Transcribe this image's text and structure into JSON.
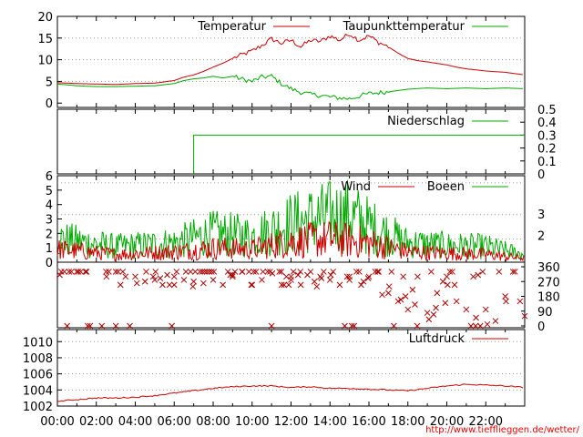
{
  "chart_data": [
    {
      "panel": "temperature",
      "type": "line",
      "ylim": [
        -1,
        20
      ],
      "yticks": [
        "0",
        "5",
        "10",
        "15",
        "20"
      ],
      "grid": true,
      "legend_placement": "top-right",
      "series": [
        {
          "name": "Temperatur",
          "color": "#cc0000",
          "points": [
            [
              0,
              4.7
            ],
            [
              1,
              4.5
            ],
            [
              2,
              4.4
            ],
            [
              3,
              4.3
            ],
            [
              4,
              4.5
            ],
            [
              5,
              4.6
            ],
            [
              6,
              5.2
            ],
            [
              6.5,
              6.0
            ],
            [
              7,
              6.5
            ],
            [
              7.5,
              7.3
            ],
            [
              8,
              8.3
            ],
            [
              8.5,
              9.2
            ],
            [
              9,
              10.3
            ],
            [
              9.5,
              11.2
            ],
            [
              10,
              12.0
            ],
            [
              10.5,
              13.3
            ],
            [
              11,
              14.8
            ],
            [
              11.5,
              13.8
            ],
            [
              12,
              14.5
            ],
            [
              12.5,
              13.0
            ],
            [
              13,
              14.5
            ],
            [
              13.5,
              14.2
            ],
            [
              14,
              15.5
            ],
            [
              14.5,
              14.5
            ],
            [
              15,
              16.0
            ],
            [
              15.5,
              14.5
            ],
            [
              16,
              15.5
            ],
            [
              16.5,
              14.0
            ],
            [
              17,
              13.0
            ],
            [
              17.5,
              11.5
            ],
            [
              18,
              10.3
            ],
            [
              18.5,
              9.8
            ],
            [
              19,
              9.5
            ],
            [
              20,
              8.8
            ],
            [
              20.5,
              8.3
            ],
            [
              21,
              7.9
            ],
            [
              22,
              7.4
            ],
            [
              23,
              7.1
            ],
            [
              24,
              6.5
            ]
          ]
        },
        {
          "name": "Taupunkttemperatur",
          "color": "#00aa00",
          "points": [
            [
              0,
              4.4
            ],
            [
              1,
              4.0
            ],
            [
              2,
              3.8
            ],
            [
              3,
              3.8
            ],
            [
              4,
              3.9
            ],
            [
              5,
              4.0
            ],
            [
              6,
              4.5
            ],
            [
              6.5,
              5.2
            ],
            [
              7,
              5.6
            ],
            [
              7.5,
              5.8
            ],
            [
              8,
              6.2
            ],
            [
              8.5,
              5.8
            ],
            [
              9,
              6.2
            ],
            [
              9.5,
              5.5
            ],
            [
              10,
              5.0
            ],
            [
              10.5,
              6.0
            ],
            [
              11,
              6.2
            ],
            [
              11.5,
              4.5
            ],
            [
              12,
              3.3
            ],
            [
              12.5,
              2.5
            ],
            [
              13,
              2.0
            ],
            [
              13.5,
              1.8
            ],
            [
              14,
              1.4
            ],
            [
              14.5,
              1.2
            ],
            [
              15,
              1.0
            ],
            [
              15.5,
              1.6
            ],
            [
              16,
              2.2
            ],
            [
              16.5,
              2.4
            ],
            [
              17,
              2.6
            ],
            [
              18,
              3.2
            ],
            [
              19,
              3.5
            ],
            [
              20,
              3.3
            ],
            [
              21,
              3.5
            ],
            [
              22,
              3.3
            ],
            [
              23,
              3.5
            ],
            [
              24,
              3.3
            ]
          ]
        }
      ]
    },
    {
      "panel": "precipitation",
      "type": "line",
      "ylim": [
        0,
        0.5
      ],
      "yticks": [
        "0",
        "0.1",
        "0.2",
        "0.3",
        "0.4",
        "0.5"
      ],
      "y_axis_side": "right",
      "legend_placement": "top-right",
      "series": [
        {
          "name": "Niederschlag",
          "color": "#00aa00",
          "points": [
            [
              7.0,
              0
            ],
            [
              7.0,
              0.3
            ],
            [
              24,
              0.3
            ]
          ]
        }
      ]
    },
    {
      "panel": "wind",
      "type": "line",
      "ylim": [
        0,
        6
      ],
      "yticks": [
        "0",
        "1",
        "2",
        "3",
        "4",
        "5",
        "6"
      ],
      "grid": true,
      "legend_placement": "top-right",
      "beaufort_labels": [
        "2",
        "3"
      ],
      "series": [
        {
          "name": "Wind",
          "color": "#cc0000",
          "profile": [
            [
              0,
              1.0
            ],
            [
              3,
              0.6
            ],
            [
              6,
              0.8
            ],
            [
              8,
              1.1
            ],
            [
              10,
              1.0
            ],
            [
              12,
              1.6
            ],
            [
              14,
              1.8
            ],
            [
              16,
              1.5
            ],
            [
              18,
              0.8
            ],
            [
              20,
              0.7
            ],
            [
              22,
              0.6
            ],
            [
              24,
              0.3
            ]
          ]
        },
        {
          "name": "Boeen",
          "color": "#00aa00",
          "profile": [
            [
              0,
              1.8
            ],
            [
              3,
              1.2
            ],
            [
              6,
              1.5
            ],
            [
              8,
              2.2
            ],
            [
              10,
              2.0
            ],
            [
              12,
              3.0
            ],
            [
              14,
              3.5
            ],
            [
              15,
              3.6
            ],
            [
              16,
              2.8
            ],
            [
              18,
              1.5
            ],
            [
              20,
              1.3
            ],
            [
              22,
              1.2
            ],
            [
              24,
              0.6
            ]
          ]
        }
      ]
    },
    {
      "panel": "wind-direction",
      "type": "scatter",
      "ylim": [
        0,
        360
      ],
      "yticks": [
        "0",
        "90",
        "180",
        "270",
        "360"
      ],
      "y_axis_side": "right",
      "marker": "x",
      "color": "#aa0000",
      "points": [
        [
          0.2,
          330
        ],
        [
          0.5,
          0
        ],
        [
          1.0,
          330
        ],
        [
          1.5,
          330
        ],
        [
          2.5,
          330
        ],
        [
          3.0,
          0
        ],
        [
          3.5,
          300
        ],
        [
          4.0,
          300
        ],
        [
          4.5,
          270
        ],
        [
          5.0,
          280
        ],
        [
          6.0,
          300
        ],
        [
          6.5,
          280
        ],
        [
          7.0,
          270
        ],
        [
          7.5,
          260
        ],
        [
          8.0,
          280
        ],
        [
          8.5,
          250
        ],
        [
          9.0,
          300
        ],
        [
          9.5,
          330
        ],
        [
          10.0,
          250
        ],
        [
          10.5,
          280
        ],
        [
          11.0,
          0
        ],
        [
          11.5,
          330
        ],
        [
          12.0,
          280
        ],
        [
          12.5,
          250
        ],
        [
          13.0,
          330
        ],
        [
          13.5,
          300
        ],
        [
          14.0,
          280
        ],
        [
          14.5,
          250
        ],
        [
          15.0,
          300
        ],
        [
          15.5,
          330
        ],
        [
          16.0,
          300
        ],
        [
          16.5,
          330
        ],
        [
          17.0,
          200
        ],
        [
          17.5,
          150
        ],
        [
          18.0,
          100
        ],
        [
          18.5,
          300
        ],
        [
          19.0,
          80
        ],
        [
          19.5,
          200
        ],
        [
          20.0,
          300
        ],
        [
          20.5,
          150
        ],
        [
          21.0,
          100
        ],
        [
          21.5,
          50
        ],
        [
          22.0,
          100
        ],
        [
          22.5,
          30
        ],
        [
          23.0,
          180
        ],
        [
          23.5,
          330
        ],
        [
          24.0,
          60
        ]
      ]
    },
    {
      "panel": "pressure",
      "type": "line",
      "ylim": [
        1002,
        1011.5
      ],
      "yticks": [
        "1002",
        "1004",
        "1006",
        "1008",
        "1010"
      ],
      "grid": true,
      "legend_placement": "top-right",
      "series": [
        {
          "name": "Luftdruck",
          "color": "#cc0000",
          "points": [
            [
              0,
              1002.6
            ],
            [
              1,
              1002.8
            ],
            [
              2,
              1003.0
            ],
            [
              3,
              1003.0
            ],
            [
              4,
              1003.1
            ],
            [
              5,
              1003.3
            ],
            [
              6,
              1003.6
            ],
            [
              7,
              1003.9
            ],
            [
              8,
              1004.2
            ],
            [
              9,
              1004.4
            ],
            [
              10,
              1004.5
            ],
            [
              11,
              1004.5
            ],
            [
              12,
              1004.3
            ],
            [
              13,
              1004.4
            ],
            [
              14,
              1004.2
            ],
            [
              15,
              1004.2
            ],
            [
              16,
              1004.1
            ],
            [
              17,
              1004.0
            ],
            [
              18,
              1003.9
            ],
            [
              19,
              1004.2
            ],
            [
              20,
              1004.5
            ],
            [
              21,
              1004.7
            ],
            [
              22,
              1004.6
            ],
            [
              23,
              1004.5
            ],
            [
              24,
              1004.3
            ]
          ]
        }
      ]
    }
  ],
  "x_axis": {
    "range_hours": [
      0,
      24
    ],
    "ticks": [
      "00:00",
      "02:00",
      "04:00",
      "06:00",
      "08:00",
      "10:00",
      "12:00",
      "14:00",
      "16:00",
      "18:00",
      "20:00",
      "22:00"
    ]
  },
  "footer": {
    "credit": "http://www.tiefflieggen.de/wetter/"
  },
  "colors": {
    "red": "#cc0000",
    "green": "#00aa00",
    "dark_red": "#aa0000",
    "grid": "#999999"
  }
}
